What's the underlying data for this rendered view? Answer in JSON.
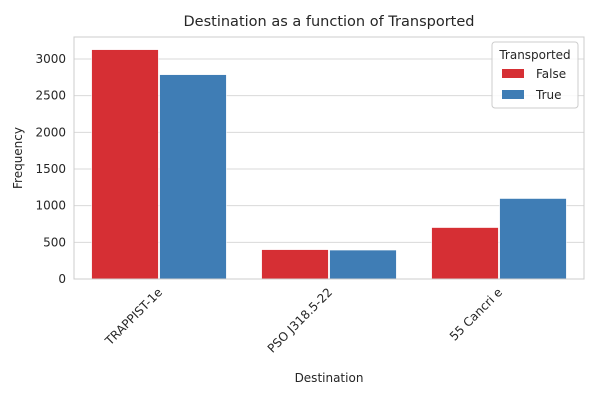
{
  "chart_data": {
    "type": "bar",
    "title": "Destination as a function of Transported",
    "xlabel": "Destination",
    "ylabel": "Frequency",
    "categories": [
      "TRAPPIST-1e",
      "PSO J318.5-22",
      "55 Cancri e"
    ],
    "series": [
      {
        "name": "False",
        "values": [
          3128,
          401,
          702
        ],
        "color": "#d62f34"
      },
      {
        "name": "True",
        "values": [
          2787,
          395,
          1098
        ],
        "color": "#3f7db5"
      }
    ],
    "ylim": [
      0,
      3300
    ],
    "yticks": [
      0,
      500,
      1000,
      1500,
      2000,
      2500,
      3000
    ],
    "grid": "horizontal",
    "legend": {
      "title": "Transported",
      "placement": "top-right"
    },
    "x_tick_rotation": 45
  }
}
